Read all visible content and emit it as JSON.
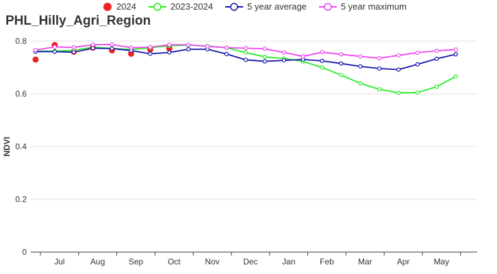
{
  "chart_data": {
    "type": "line",
    "title": "PHL_Hilly_Agri_Region",
    "ylabel": "NDVI",
    "xlabel": "",
    "ylim": [
      0,
      0.8
    ],
    "yticks": [
      "0",
      "0.2",
      "0.4",
      "0.6",
      "0.8"
    ],
    "months": [
      "Jul",
      "Aug",
      "Sep",
      "Oct",
      "Nov",
      "Dec",
      "Jan",
      "Feb",
      "Mar",
      "Apr",
      "May"
    ],
    "grid": "horizontal",
    "legend_position": "top",
    "series": [
      {
        "name": "2024",
        "style": "scatter",
        "color": "#ee2222",
        "points": [
          [
            0,
            0.73
          ],
          [
            0.5,
            0.785
          ],
          [
            1.0,
            0.76
          ],
          [
            1.5,
            0.775
          ],
          [
            2.0,
            0.765
          ],
          [
            2.5,
            0.752
          ],
          [
            3.0,
            0.768
          ],
          [
            3.5,
            0.772
          ]
        ]
      },
      {
        "name": "2023-2024",
        "style": "line",
        "color": "#22ee22",
        "points": [
          [
            0,
            0.762
          ],
          [
            0.5,
            0.762
          ],
          [
            1.0,
            0.765
          ],
          [
            1.5,
            0.777
          ],
          [
            2.0,
            0.772
          ],
          [
            2.5,
            0.768
          ],
          [
            3.0,
            0.775
          ],
          [
            3.5,
            0.782
          ],
          [
            4.0,
            0.785
          ],
          [
            4.5,
            0.781
          ],
          [
            5.0,
            0.775
          ],
          [
            5.5,
            0.757
          ],
          [
            6.0,
            0.74
          ],
          [
            6.5,
            0.734
          ],
          [
            7.0,
            0.723
          ],
          [
            7.5,
            0.7
          ],
          [
            8.0,
            0.671
          ],
          [
            8.5,
            0.64
          ],
          [
            9.0,
            0.617
          ],
          [
            9.5,
            0.604
          ],
          [
            10.0,
            0.605
          ],
          [
            10.5,
            0.627
          ],
          [
            11.0,
            0.666
          ]
        ]
      },
      {
        "name": "5 year average",
        "style": "line",
        "color": "#1111aa",
        "points": [
          [
            0,
            0.76
          ],
          [
            0.5,
            0.76
          ],
          [
            1.0,
            0.758
          ],
          [
            1.5,
            0.773
          ],
          [
            2.0,
            0.772
          ],
          [
            2.5,
            0.764
          ],
          [
            3.0,
            0.752
          ],
          [
            3.5,
            0.757
          ],
          [
            4.0,
            0.769
          ],
          [
            4.5,
            0.769
          ],
          [
            5.0,
            0.751
          ],
          [
            5.5,
            0.729
          ],
          [
            6.0,
            0.723
          ],
          [
            6.5,
            0.727
          ],
          [
            7.0,
            0.73
          ],
          [
            7.5,
            0.725
          ],
          [
            8.0,
            0.715
          ],
          [
            8.5,
            0.704
          ],
          [
            9.0,
            0.696
          ],
          [
            9.5,
            0.692
          ],
          [
            10.0,
            0.712
          ],
          [
            10.5,
            0.733
          ],
          [
            11.0,
            0.75
          ]
        ]
      },
      {
        "name": "5 year maximum",
        "style": "line",
        "color": "#ee44ee",
        "points": [
          [
            0,
            0.766
          ],
          [
            0.5,
            0.778
          ],
          [
            1.0,
            0.776
          ],
          [
            1.5,
            0.786
          ],
          [
            2.0,
            0.787
          ],
          [
            2.5,
            0.775
          ],
          [
            3.0,
            0.777
          ],
          [
            3.5,
            0.786
          ],
          [
            4.0,
            0.786
          ],
          [
            4.5,
            0.78
          ],
          [
            5.0,
            0.775
          ],
          [
            5.5,
            0.773
          ],
          [
            6.0,
            0.771
          ],
          [
            6.5,
            0.757
          ],
          [
            7.0,
            0.742
          ],
          [
            7.5,
            0.758
          ],
          [
            8.0,
            0.75
          ],
          [
            8.5,
            0.742
          ],
          [
            9.0,
            0.735
          ],
          [
            9.5,
            0.746
          ],
          [
            10.0,
            0.756
          ],
          [
            10.5,
            0.763
          ],
          [
            11.0,
            0.768
          ]
        ]
      }
    ]
  }
}
